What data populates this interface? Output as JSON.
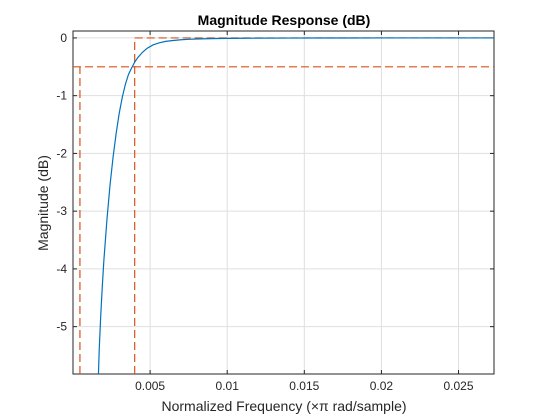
{
  "chart_data": {
    "type": "line",
    "title": "Magnitude Response (dB)",
    "xlabel": "Normalized Frequency (×π rad/sample)",
    "ylabel": "Magnitude (dB)",
    "xlim": [
      0.0,
      0.0273
    ],
    "ylim": [
      -5.82,
      0.12
    ],
    "grid": true,
    "x_ticks": [
      0.005,
      0.01,
      0.015,
      0.02,
      0.025
    ],
    "x_tick_labels": [
      "0.005",
      "0.01",
      "0.015",
      "0.02",
      "0.025"
    ],
    "y_ticks": [
      0,
      -1,
      -2,
      -3,
      -4,
      -5
    ],
    "y_tick_labels": [
      "0",
      "-1",
      "-2",
      "-3",
      "-4",
      "-5"
    ],
    "series": [
      {
        "x": [
          0.00165,
          0.0017,
          0.0018,
          0.0019,
          0.002,
          0.0022,
          0.0024,
          0.0026,
          0.0028,
          0.003,
          0.0032,
          0.0034,
          0.0036,
          0.0038,
          0.004,
          0.0042,
          0.0045,
          0.0048,
          0.0052,
          0.0056,
          0.006,
          0.0065,
          0.007,
          0.0075,
          0.008,
          0.009,
          0.01,
          0.011,
          0.012,
          0.014,
          0.016,
          0.018,
          0.02,
          0.022,
          0.024,
          0.026,
          0.0273
        ],
        "y": [
          -5.82,
          -5.4,
          -4.8,
          -4.3,
          -3.86,
          -3.15,
          -2.55,
          -2.06,
          -1.65,
          -1.3,
          -1.02,
          -0.8,
          -0.63,
          -0.52,
          -0.42,
          -0.34,
          -0.25,
          -0.18,
          -0.12,
          -0.085,
          -0.06,
          -0.045,
          -0.032,
          -0.024,
          -0.018,
          -0.012,
          -0.008,
          -0.005,
          -0.004,
          -0.002,
          -0.0015,
          -0.001,
          -0.0005,
          0.0,
          0.0,
          0.0,
          0.0
        ],
        "color": "#0072bd"
      }
    ],
    "spec_lines": {
      "color": "#d95319",
      "stopband_edge_x": 0.00045,
      "passband_edge_x": 0.004,
      "passband_ripple_y": -0.5,
      "passband_top_y": 0.0
    }
  }
}
